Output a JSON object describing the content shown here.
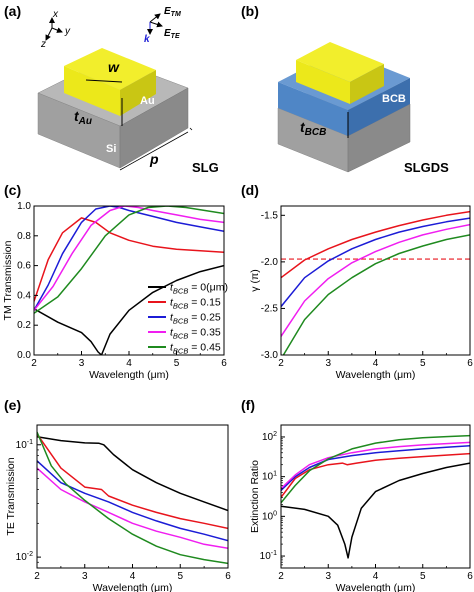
{
  "panels": {
    "a": {
      "label": "(a)",
      "axes": {
        "x": "x",
        "y": "y",
        "z": "z"
      },
      "fields": {
        "e_tm": "E",
        "e_tm_sub": "TM",
        "k": "k",
        "e_te": "E",
        "e_te_sub": "TE"
      },
      "labels": {
        "w": "w",
        "au": "Au",
        "t": "t",
        "t_sub": "Au",
        "si": "Si",
        "p": "p"
      },
      "name": "SLG"
    },
    "b": {
      "label": "(b)",
      "labels": {
        "bcb": "BCB",
        "t": "t",
        "t_sub": "BCB"
      },
      "name": "SLGDS"
    }
  },
  "legend": {
    "prefix": "t",
    "sub": "BCB",
    "values": [
      "= 0(μm)",
      "= 0.15",
      "= 0.25",
      "= 0.35",
      "= 0.45"
    ]
  },
  "colors": {
    "t0": "#000000",
    "t015": "#e8141c",
    "t025": "#1c1cd6",
    "t035": "#f01ef0",
    "t045": "#1f8a1f",
    "ref": "#e8141c",
    "geom_gray": "#9a9a9a",
    "gold": "#ece81a",
    "bcb_blue": "#4f86c6"
  },
  "chart_data": [
    {
      "panel": "(c)",
      "type": "line",
      "xlabel": "Wavelength (μm)",
      "ylabel": "TM Transmission",
      "xlim": [
        2,
        6
      ],
      "ylim": [
        0,
        1
      ],
      "xticks": [
        "2",
        "3",
        "4",
        "5",
        "6"
      ],
      "yticks": [
        "0.0",
        "0.2",
        "0.4",
        "0.6",
        "0.8",
        "1.0"
      ],
      "series": [
        {
          "key": "t0",
          "x": [
            2,
            2.5,
            3,
            3.2,
            3.35,
            3.42,
            3.6,
            4,
            4.5,
            5,
            5.5,
            6
          ],
          "y": [
            0.31,
            0.22,
            0.15,
            0.09,
            0.02,
            0.0,
            0.14,
            0.3,
            0.42,
            0.5,
            0.56,
            0.6
          ]
        },
        {
          "key": "t015",
          "x": [
            2,
            2.3,
            2.6,
            3,
            3.3,
            3.6,
            4,
            4.5,
            5,
            5.5,
            6
          ],
          "y": [
            0.36,
            0.64,
            0.82,
            0.92,
            0.89,
            0.82,
            0.77,
            0.73,
            0.71,
            0.7,
            0.69
          ]
        },
        {
          "key": "t025",
          "x": [
            2,
            2.3,
            2.6,
            3,
            3.3,
            3.6,
            3.8,
            4,
            4.5,
            5,
            5.5,
            6
          ],
          "y": [
            0.3,
            0.47,
            0.68,
            0.89,
            0.98,
            1.0,
            0.99,
            0.97,
            0.93,
            0.89,
            0.86,
            0.83
          ]
        },
        {
          "key": "t035",
          "x": [
            2,
            2.4,
            2.8,
            3.2,
            3.6,
            3.9,
            4.2,
            4.5,
            5,
            5.5,
            6
          ],
          "y": [
            0.3,
            0.46,
            0.68,
            0.87,
            0.97,
            1.0,
            0.99,
            0.97,
            0.94,
            0.91,
            0.89
          ]
        },
        {
          "key": "t045",
          "x": [
            2,
            2.5,
            3,
            3.5,
            4,
            4.4,
            4.8,
            5.2,
            5.6,
            6
          ],
          "y": [
            0.28,
            0.39,
            0.58,
            0.8,
            0.94,
            0.99,
            1.0,
            0.99,
            0.97,
            0.95
          ]
        }
      ]
    },
    {
      "panel": "(d)",
      "type": "line",
      "xlabel": "Wavelength (μm)",
      "ylabel": "γ (π)",
      "xlim": [
        2,
        6
      ],
      "ylim": [
        -3.0,
        -1.4
      ],
      "xticks": [
        "2",
        "3",
        "4",
        "5",
        "6"
      ],
      "yticks": [
        "-3.0",
        "-2.5",
        "-2.0",
        "-1.5"
      ],
      "reference_line": -1.97,
      "series": [
        {
          "key": "t015",
          "x": [
            2,
            2.5,
            3,
            3.5,
            4,
            4.5,
            5,
            5.5,
            6
          ],
          "y": [
            -2.17,
            -1.98,
            -1.86,
            -1.76,
            -1.68,
            -1.61,
            -1.55,
            -1.5,
            -1.46
          ]
        },
        {
          "key": "t025",
          "x": [
            2,
            2.5,
            3,
            3.5,
            4,
            4.5,
            5,
            5.5,
            6
          ],
          "y": [
            -2.48,
            -2.17,
            -1.99,
            -1.86,
            -1.76,
            -1.68,
            -1.62,
            -1.57,
            -1.53
          ]
        },
        {
          "key": "t035",
          "x": [
            2,
            2.5,
            3,
            3.5,
            4,
            4.5,
            5,
            5.5,
            6
          ],
          "y": [
            -2.8,
            -2.42,
            -2.18,
            -2.01,
            -1.89,
            -1.79,
            -1.71,
            -1.65,
            -1.6
          ]
        },
        {
          "key": "t045",
          "x": [
            2.05,
            2.5,
            3,
            3.5,
            4,
            4.5,
            5,
            5.5,
            6
          ],
          "y": [
            -3.0,
            -2.62,
            -2.35,
            -2.17,
            -2.02,
            -1.91,
            -1.83,
            -1.76,
            -1.71
          ]
        }
      ]
    },
    {
      "panel": "(e)",
      "type": "line",
      "scale": "log",
      "xlabel": "Wavelength (μm)",
      "ylabel": "TE Transmission",
      "xlim": [
        2,
        6
      ],
      "ylim": [
        0.008,
        0.15
      ],
      "xticks": [
        "2",
        "3",
        "4",
        "5",
        "6"
      ],
      "ytick_base": "10",
      "ytick_exps": [
        "-1",
        "-2"
      ],
      "ytick_values": [
        0.1,
        0.01
      ],
      "series": [
        {
          "key": "t0",
          "x": [
            2,
            2.5,
            3,
            3.3,
            3.4,
            3.6,
            4,
            4.5,
            5,
            5.5,
            6
          ],
          "y": [
            0.118,
            0.109,
            0.104,
            0.103,
            0.1,
            0.082,
            0.06,
            0.046,
            0.037,
            0.031,
            0.026
          ]
        },
        {
          "key": "t015",
          "x": [
            2,
            2.5,
            3,
            3.35,
            3.5,
            4,
            4.5,
            5,
            5.5,
            6
          ],
          "y": [
            0.125,
            0.062,
            0.042,
            0.04,
            0.035,
            0.029,
            0.025,
            0.022,
            0.02,
            0.018
          ]
        },
        {
          "key": "t025",
          "x": [
            2,
            2.5,
            3,
            3.5,
            4,
            4.5,
            5,
            5.5,
            6
          ],
          "y": [
            0.072,
            0.046,
            0.037,
            0.031,
            0.025,
            0.021,
            0.018,
            0.016,
            0.014
          ]
        },
        {
          "key": "t035",
          "x": [
            2,
            2.5,
            3,
            3.5,
            4,
            4.5,
            5,
            5.5,
            6
          ],
          "y": [
            0.062,
            0.04,
            0.031,
            0.025,
            0.02,
            0.017,
            0.015,
            0.013,
            0.012
          ]
        },
        {
          "key": "t045",
          "x": [
            2,
            2.3,
            2.6,
            3,
            3.5,
            4,
            4.5,
            5,
            5.5,
            6
          ],
          "y": [
            0.13,
            0.065,
            0.045,
            0.032,
            0.022,
            0.016,
            0.0125,
            0.0105,
            0.0095,
            0.0088
          ]
        }
      ]
    },
    {
      "panel": "(f)",
      "type": "line",
      "scale": "log",
      "xlabel": "Wavelength (μm)",
      "ylabel": "Extinction Ratio",
      "xlim": [
        2,
        6
      ],
      "ylim": [
        0.05,
        200
      ],
      "xticks": [
        "2",
        "3",
        "4",
        "5",
        "6"
      ],
      "ytick_base": "10",
      "ytick_exps": [
        "-1",
        "0",
        "1",
        "2"
      ],
      "ytick_values": [
        0.1,
        1,
        10,
        100
      ],
      "series": [
        {
          "key": "t0",
          "x": [
            2,
            2.5,
            3,
            3.2,
            3.35,
            3.42,
            3.5,
            3.7,
            4,
            4.5,
            5,
            5.5,
            6
          ],
          "y": [
            1.8,
            1.5,
            1.0,
            0.6,
            0.2,
            0.09,
            0.3,
            1.6,
            4.2,
            8,
            12,
            17,
            22
          ]
        },
        {
          "key": "t015",
          "x": [
            2,
            2.3,
            2.6,
            3,
            3.3,
            3.4,
            3.6,
            4,
            4.5,
            5,
            5.5,
            6
          ],
          "y": [
            3,
            9,
            15,
            20,
            22,
            20,
            22,
            26,
            29,
            32,
            35,
            38
          ]
        },
        {
          "key": "t025",
          "x": [
            2,
            2.3,
            2.6,
            3,
            3.5,
            4,
            4.5,
            5,
            5.5,
            6
          ],
          "y": [
            4.5,
            10,
            17,
            27,
            34,
            40,
            45,
            50,
            55,
            60
          ]
        },
        {
          "key": "t035",
          "x": [
            2,
            2.3,
            2.6,
            3,
            3.5,
            4,
            4.5,
            5,
            5.5,
            6
          ],
          "y": [
            5,
            11,
            20,
            30,
            40,
            50,
            57,
            63,
            68,
            73
          ]
        },
        {
          "key": "t045",
          "x": [
            2,
            2.3,
            2.6,
            3,
            3.5,
            4,
            4.5,
            5,
            5.5,
            6
          ],
          "y": [
            2.2,
            6,
            14,
            28,
            50,
            70,
            85,
            95,
            102,
            108
          ]
        }
      ]
    }
  ]
}
